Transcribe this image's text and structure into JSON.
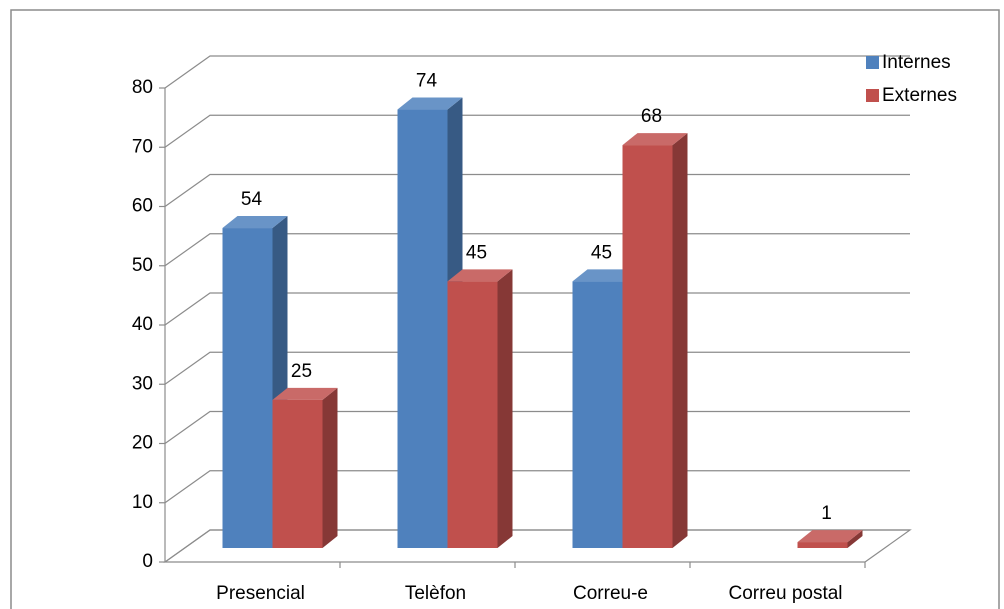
{
  "chart_data": {
    "type": "bar3d",
    "categories": [
      "Presencial",
      "Telèfon",
      "Correu-e",
      "Correu postal"
    ],
    "series": [
      {
        "name": "Internes",
        "color": "#4f81bd",
        "values": [
          54,
          74,
          45,
          null
        ]
      },
      {
        "name": "Externes",
        "color": "#c0504d",
        "values": [
          25,
          45,
          68,
          1
        ]
      }
    ],
    "ylim": [
      0,
      80
    ],
    "yticks": [
      0,
      10,
      20,
      30,
      40,
      50,
      60,
      70,
      80
    ],
    "grid": true,
    "legend": "top-right"
  }
}
